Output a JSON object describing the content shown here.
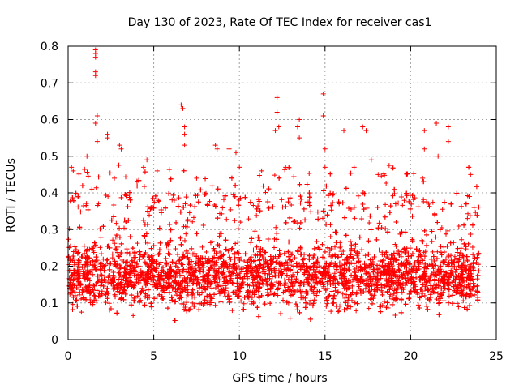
{
  "chart_data": {
    "type": "scatter",
    "title": "Day 130 of 2023, Rate Of TEC Index for receiver cas1",
    "xlabel": "GPS time / hours",
    "ylabel": "ROTI / TECUs",
    "xlim": [
      0,
      25
    ],
    "ylim": [
      0,
      0.8
    ],
    "x_ticks": [
      0,
      5,
      10,
      15,
      20,
      25
    ],
    "x_tick_labels": [
      "0",
      "5",
      "10",
      "15",
      "20",
      "25"
    ],
    "y_ticks": [
      0,
      0.1,
      0.2,
      0.3,
      0.4,
      0.5,
      0.6,
      0.7,
      0.8
    ],
    "y_tick_labels": [
      "0",
      "0.1",
      "0.2",
      "0.3",
      "0.4",
      "0.5",
      "0.6",
      "0.7",
      "0.8"
    ],
    "grid": true,
    "legend": "none",
    "marker": "plus",
    "color": "#ff0000",
    "x_data_range": [
      0,
      24
    ],
    "series": [
      {
        "points": [
          [
            1.6,
            0.79
          ],
          [
            1.6,
            0.78
          ],
          [
            1.6,
            0.77
          ],
          [
            1.6,
            0.73
          ],
          [
            1.6,
            0.72
          ],
          [
            1.7,
            0.61
          ],
          [
            1.6,
            0.59
          ],
          [
            1.7,
            0.54
          ],
          [
            2.3,
            0.55
          ],
          [
            2.3,
            0.56
          ],
          [
            6.6,
            0.64
          ],
          [
            6.7,
            0.63
          ],
          [
            6.8,
            0.58
          ],
          [
            6.8,
            0.56
          ],
          [
            6.8,
            0.53
          ],
          [
            12.2,
            0.66
          ],
          [
            12.2,
            0.62
          ],
          [
            12.3,
            0.58
          ],
          [
            12.1,
            0.57
          ],
          [
            13.5,
            0.6
          ],
          [
            13.4,
            0.58
          ],
          [
            13.5,
            0.55
          ],
          [
            14.9,
            0.67
          ],
          [
            14.9,
            0.61
          ],
          [
            15.0,
            0.52
          ],
          [
            15.0,
            0.47
          ],
          [
            16.1,
            0.57
          ],
          [
            17.2,
            0.58
          ],
          [
            17.4,
            0.57
          ],
          [
            21.5,
            0.59
          ],
          [
            21.6,
            0.5
          ],
          [
            22.2,
            0.58
          ],
          [
            22.2,
            0.54
          ],
          [
            20.8,
            0.57
          ],
          [
            20.8,
            0.52
          ],
          [
            23.4,
            0.47
          ],
          [
            3.0,
            0.53
          ],
          [
            3.1,
            0.52
          ],
          [
            4.6,
            0.49
          ],
          [
            8.6,
            0.53
          ],
          [
            8.7,
            0.52
          ],
          [
            9.4,
            0.52
          ],
          [
            9.8,
            0.51
          ],
          [
            10.0,
            0.47
          ],
          [
            0.2,
            0.47
          ],
          [
            0.3,
            0.46
          ],
          [
            1.1,
            0.5
          ],
          [
            2.7,
            0.44
          ],
          [
            4.4,
            0.47
          ],
          [
            5.2,
            0.46
          ],
          [
            7.5,
            0.44
          ],
          [
            11.3,
            0.46
          ],
          [
            12.7,
            0.47
          ],
          [
            16.7,
            0.47
          ],
          [
            17.7,
            0.49
          ],
          [
            18.1,
            0.45
          ],
          [
            20.7,
            0.44
          ],
          [
            23.5,
            0.45
          ]
        ]
      }
    ]
  }
}
